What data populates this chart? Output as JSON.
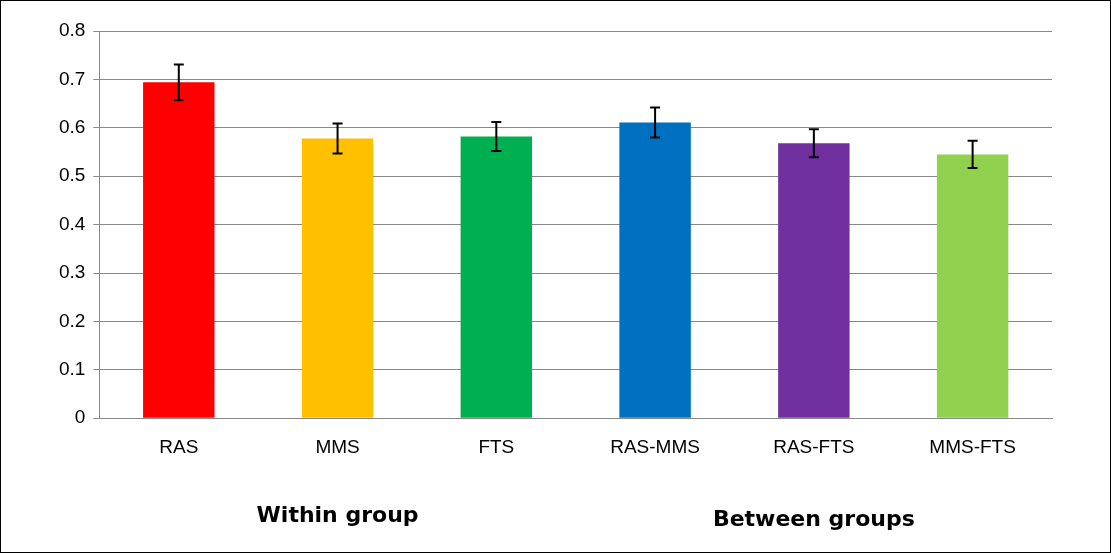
{
  "chart_data": {
    "type": "bar",
    "categories": [
      "RAS",
      "MMS",
      "FTS",
      "RAS-MMS",
      "RAS-FTS",
      "MMS-FTS"
    ],
    "values": [
      0.694,
      0.578,
      0.582,
      0.611,
      0.568,
      0.545
    ],
    "colors": [
      "#ff0000",
      "#ffc000",
      "#00b050",
      "#0070c0",
      "#7030a0",
      "#92d050"
    ],
    "errors": [
      0.037,
      0.031,
      0.03,
      0.031,
      0.029,
      0.028
    ],
    "ylim": [
      0,
      0.8
    ],
    "yticks": [
      0,
      0.1,
      0.2,
      0.3,
      0.4,
      0.5,
      0.6,
      0.7,
      0.8
    ],
    "grid": "y",
    "legend": false,
    "annotations": [
      "Within group",
      "Between groups"
    ]
  }
}
